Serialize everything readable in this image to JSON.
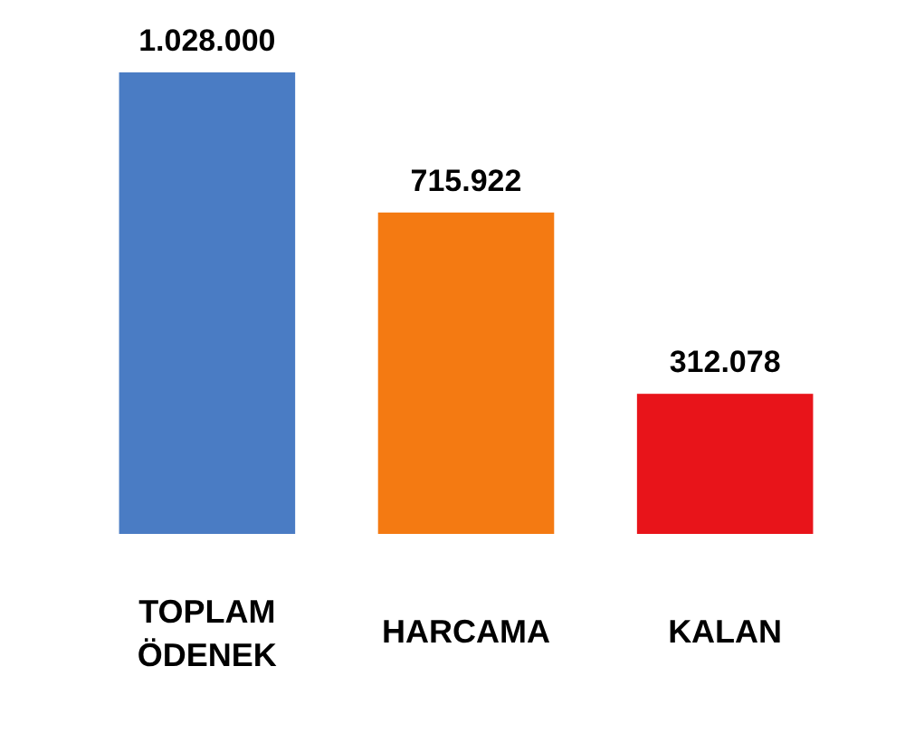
{
  "chart_data": {
    "type": "bar",
    "categories": [
      "TOPLAM ÖDENEK",
      "HARCAMA",
      "KALAN"
    ],
    "values": [
      1028000,
      715922,
      312078
    ],
    "colors": [
      "#4a7cc4",
      "#f47a12",
      "#e8141a"
    ],
    "value_labels": [
      "1.028.000",
      "715.922",
      "312.078"
    ]
  }
}
